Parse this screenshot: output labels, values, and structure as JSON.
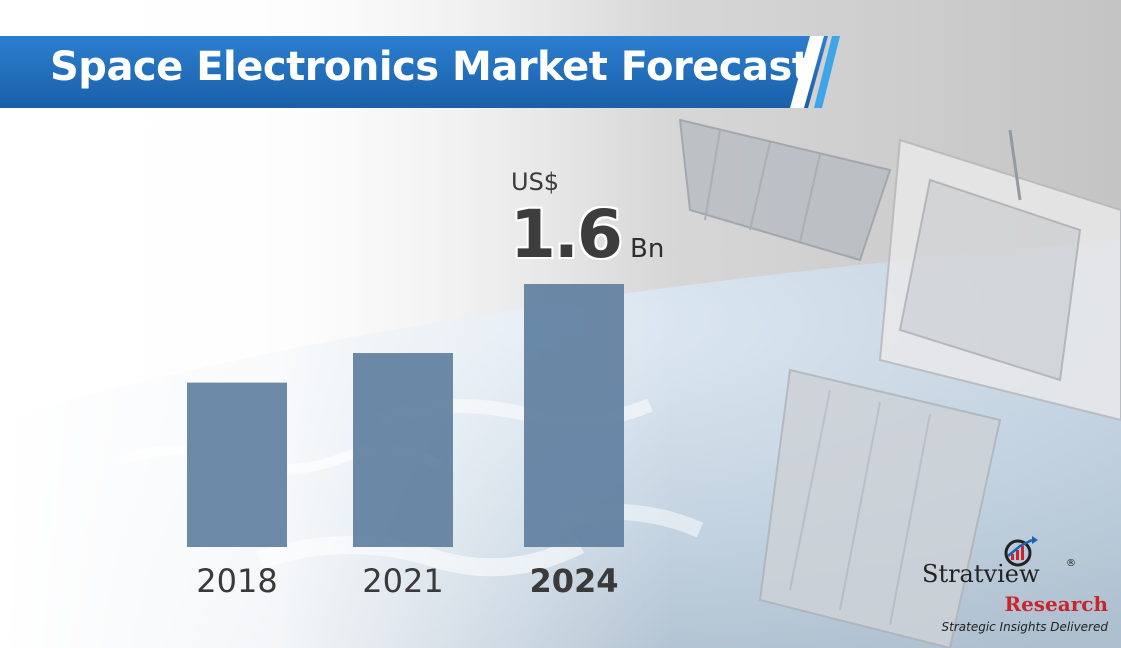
{
  "title": "Space Electronics Market Forecast",
  "callout": {
    "prefix": "US$",
    "value": "1.6",
    "unit": "Bn"
  },
  "chart_data": {
    "type": "bar",
    "categories": [
      "2018",
      "2021",
      "2024"
    ],
    "values": [
      1.0,
      1.18,
      1.6
    ],
    "highlight_category": "2024",
    "ylim": [
      0,
      1.6
    ],
    "grid": false,
    "xlabel": "",
    "ylabel": "",
    "bar_color": "#5f7f9f"
  },
  "brand": {
    "name": "Stratview",
    "registered": "®",
    "sub": "Research",
    "tagline": "Strategic Insights Delivered",
    "accent_color": "#c8262c"
  },
  "colors": {
    "banner": "#1a64b0",
    "banner_accent": "#3ea5e8"
  }
}
